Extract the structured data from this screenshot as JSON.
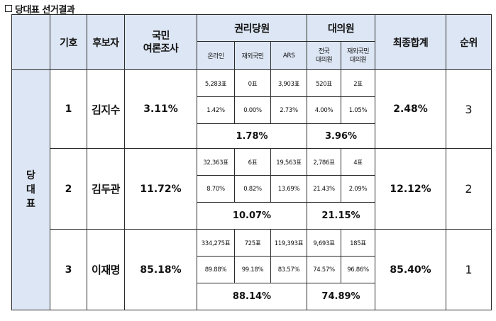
{
  "title": "당대표 선거결과",
  "header": {
    "number": "기호",
    "candidate": "후보자",
    "poll_line1": "국민",
    "poll_line2": "여론조사",
    "party_members": "권리당원",
    "delegates": "대의원",
    "final": "최종합계",
    "rank": "순위",
    "online": "온라인",
    "overseas_member": "재외국민",
    "ars": "ARS",
    "national_del_line1": "전국",
    "national_del_line2": "대의원",
    "overseas_del_line1": "재외국민",
    "overseas_del_line2": "대의원"
  },
  "side_label": [
    "당",
    "대",
    "표"
  ],
  "candidates": [
    {
      "number": "1",
      "name": "김지수",
      "poll": "3.11%",
      "votes": [
        "5,283표",
        "0표",
        "3,903표",
        "520표",
        "2표"
      ],
      "pcts": [
        "1.42%",
        "0.00%",
        "2.73%",
        "4.00%",
        "1.05%"
      ],
      "members_total": "1.78%",
      "delegates_total": "3.96%",
      "final": "2.48%",
      "rank": "3"
    },
    {
      "number": "2",
      "name": "김두관",
      "poll": "11.72%",
      "votes": [
        "32,363표",
        "6표",
        "19,563표",
        "2,786표",
        "4표"
      ],
      "pcts": [
        "8.70%",
        "0.82%",
        "13.69%",
        "21.43%",
        "2.09%"
      ],
      "members_total": "10.07%",
      "delegates_total": "21.15%",
      "final": "12.12%",
      "rank": "2"
    },
    {
      "number": "3",
      "name": "이재명",
      "poll": "85.18%",
      "votes": [
        "334,275표",
        "725표",
        "119,393표",
        "9,693표",
        "185표"
      ],
      "pcts": [
        "89.88%",
        "99.18%",
        "83.57%",
        "74.57%",
        "96.86%"
      ],
      "members_total": "88.14%",
      "delegates_total": "74.89%",
      "final": "85.40%",
      "rank": "1"
    }
  ]
}
